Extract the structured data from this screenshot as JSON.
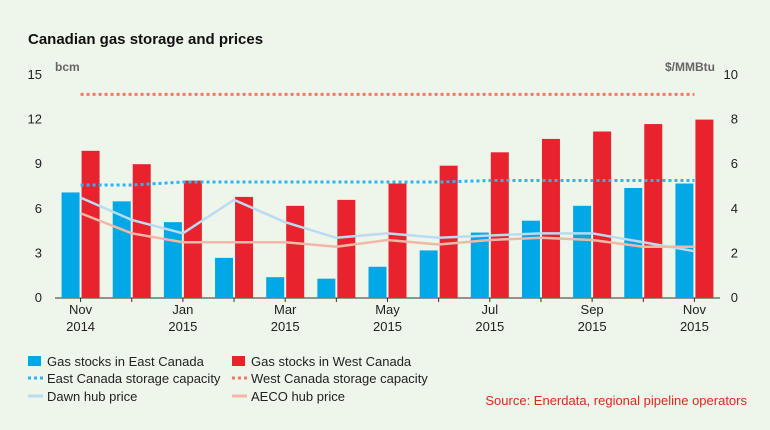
{
  "chart_data": {
    "type": "bar",
    "title": "Canadian gas storage and prices",
    "left_axis_unit": "bcm",
    "right_axis_unit": "$/MMBtu",
    "ylim_left": [
      0,
      15
    ],
    "ylim_right": [
      0,
      10
    ],
    "yticks_left": [
      "0",
      "3",
      "6",
      "9",
      "12",
      "15"
    ],
    "yticks_right": [
      "0",
      "2",
      "4",
      "6",
      "8",
      "10"
    ],
    "categories": [
      "Nov 2014",
      "Dec 2014",
      "Jan 2015",
      "Feb 2015",
      "Mar 2015",
      "Apr 2015",
      "May 2015",
      "Jun 2015",
      "Jul 2015",
      "Aug 2015",
      "Sep 2015",
      "Oct 2015",
      "Nov 2015"
    ],
    "x_tick_labels": [
      {
        "line1": "Nov",
        "line2": "2014"
      },
      {
        "line1": "",
        "line2": ""
      },
      {
        "line1": "Jan",
        "line2": "2015"
      },
      {
        "line1": "",
        "line2": ""
      },
      {
        "line1": "Mar",
        "line2": "2015"
      },
      {
        "line1": "",
        "line2": ""
      },
      {
        "line1": "May",
        "line2": "2015"
      },
      {
        "line1": "",
        "line2": ""
      },
      {
        "line1": "Jul",
        "line2": "2015"
      },
      {
        "line1": "",
        "line2": ""
      },
      {
        "line1": "Sep",
        "line2": "2015"
      },
      {
        "line1": "",
        "line2": ""
      },
      {
        "line1": "Nov",
        "line2": "2015"
      }
    ],
    "series": [
      {
        "name": "Gas stocks in East Canada",
        "kind": "bar",
        "axis": "left",
        "color": "#00a8e6",
        "values": [
          7.1,
          6.5,
          5.1,
          2.7,
          1.4,
          1.3,
          2.1,
          3.2,
          4.4,
          5.2,
          6.2,
          7.4,
          7.7
        ]
      },
      {
        "name": "Gas stocks in West Canada",
        "kind": "bar",
        "axis": "left",
        "color": "#e8232d",
        "values": [
          9.9,
          9.0,
          7.9,
          6.8,
          6.2,
          6.6,
          7.7,
          8.9,
          9.8,
          10.7,
          11.2,
          11.7,
          12.0
        ]
      },
      {
        "name": "East Canada storage capacity",
        "kind": "dotted",
        "axis": "left",
        "color": "#29b6f0",
        "values": [
          7.6,
          7.6,
          7.8,
          7.8,
          7.8,
          7.8,
          7.8,
          7.8,
          7.9,
          7.9,
          7.9,
          7.9,
          7.9
        ]
      },
      {
        "name": "West Canada storage capacity",
        "kind": "dotted",
        "axis": "left",
        "color": "#f07862",
        "values": [
          13.7,
          13.7,
          13.7,
          13.7,
          13.7,
          13.7,
          13.7,
          13.7,
          13.7,
          13.7,
          13.7,
          13.7,
          13.7
        ]
      },
      {
        "name": "Dawn hub price",
        "kind": "line",
        "axis": "right",
        "color": "#b9dcf2",
        "values": [
          4.5,
          3.5,
          2.9,
          4.4,
          3.4,
          2.7,
          2.9,
          2.7,
          2.8,
          2.9,
          2.9,
          2.5,
          2.1
        ]
      },
      {
        "name": "AECO hub price",
        "kind": "line",
        "axis": "right",
        "color": "#f2b8a6",
        "values": [
          3.8,
          2.9,
          2.5,
          2.5,
          2.5,
          2.3,
          2.6,
          2.4,
          2.6,
          2.7,
          2.6,
          2.3,
          2.3
        ]
      }
    ],
    "source": "Source: Enerdata, regional pipeline operators",
    "grid": false,
    "legend_placement": "bottom"
  }
}
